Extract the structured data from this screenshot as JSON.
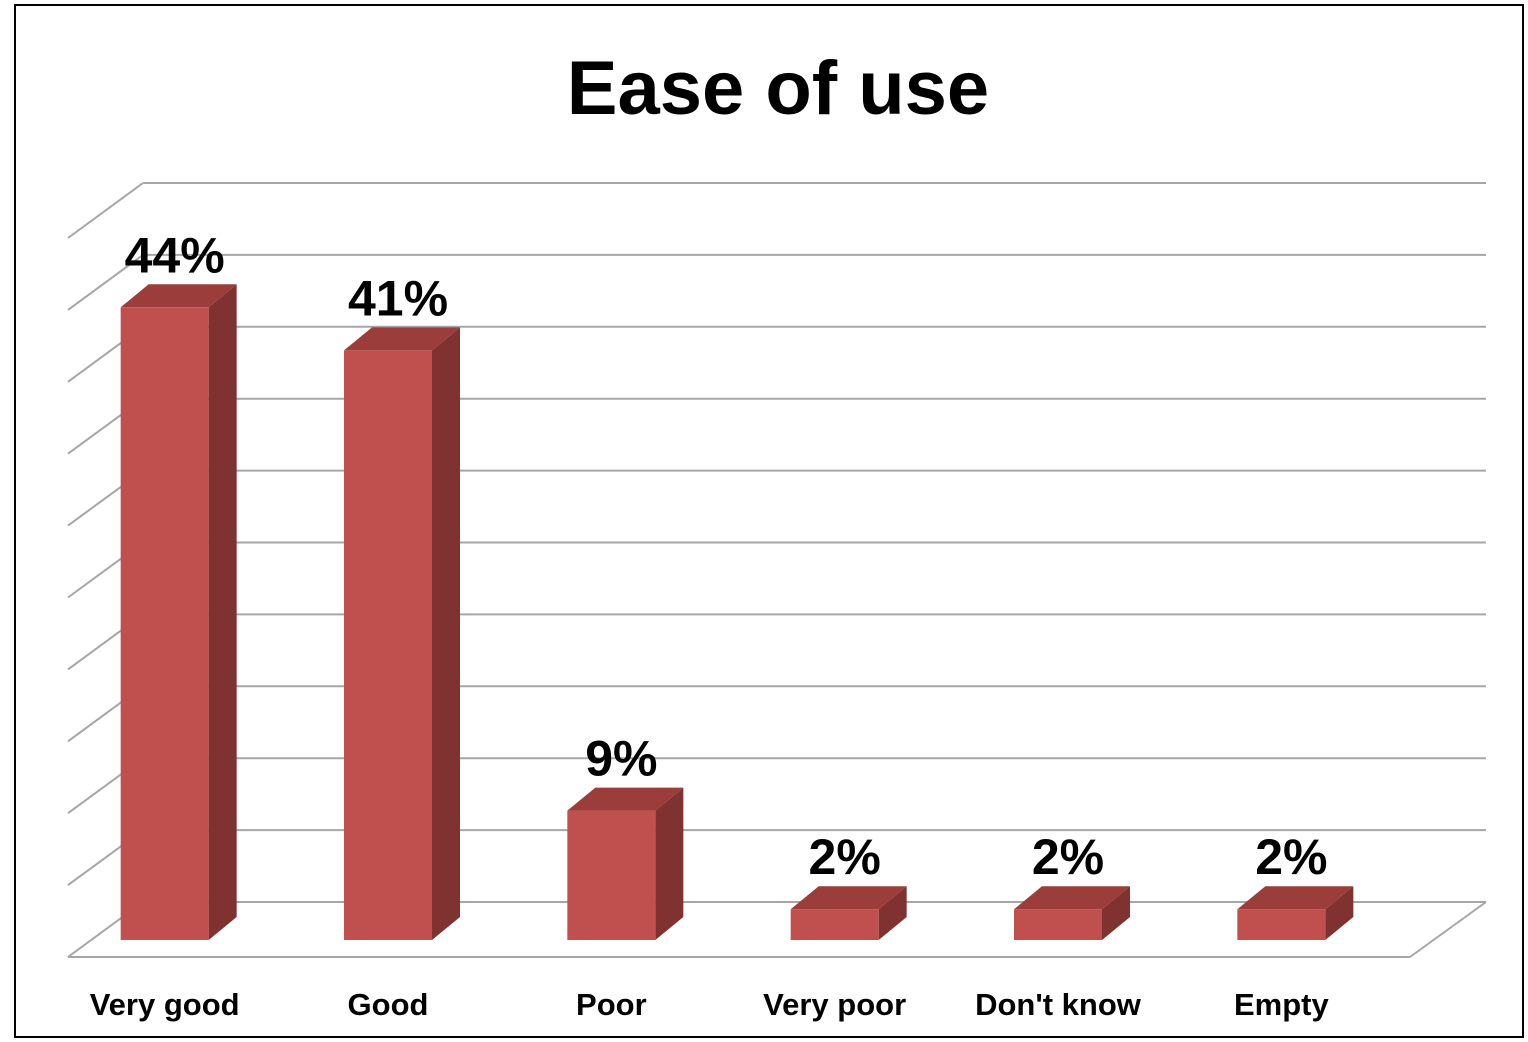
{
  "chart_data": {
    "type": "bar",
    "title": "Ease of use",
    "categories": [
      "Very good",
      "Good",
      "Poor",
      "Very poor",
      "Don't know",
      "Empty"
    ],
    "values": [
      44,
      41,
      9,
      2,
      2,
      2
    ],
    "data_labels": [
      "44%",
      "41%",
      "9%",
      "2%",
      "2%",
      "2%"
    ],
    "unit": "%",
    "ylim": [
      0,
      50
    ],
    "grid": true,
    "legend": "none",
    "style": "3d-column",
    "colors": {
      "bar_front": "#c0504d",
      "bar_side": "#7f3230",
      "bar_top": "#9b3d3a",
      "grid": "#a6a6a6"
    }
  }
}
